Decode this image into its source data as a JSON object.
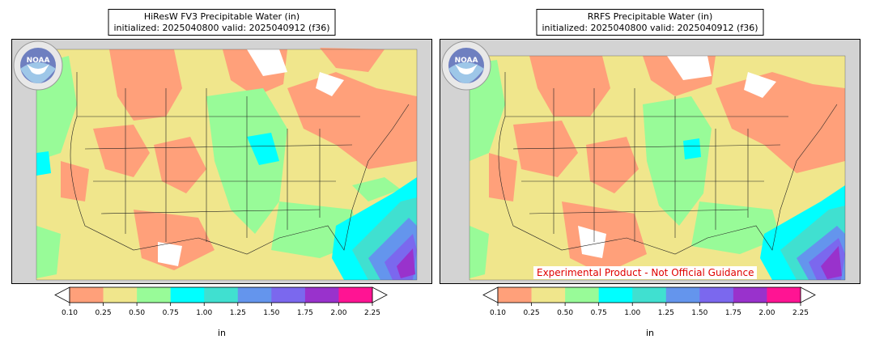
{
  "panels": [
    {
      "id": "left",
      "title_line1": "HiResW FV3 Precipitable Water (in)",
      "title_line2": "initialized: 2025040800 valid: 2025040912 (f36)",
      "logo_text": "NOAA",
      "experimental_label": ""
    },
    {
      "id": "right",
      "title_line1": "RRFS Precipitable Water (in)",
      "title_line2": "initialized: 2025040800 valid: 2025040912 (f36)",
      "logo_text": "NOAA",
      "experimental_label": "Experimental Product - Not Official Guidance"
    }
  ],
  "colorbar": {
    "units": "in",
    "ticks": [
      "0.10",
      "0.25",
      "0.50",
      "0.75",
      "1.00",
      "1.25",
      "1.50",
      "1.75",
      "2.00",
      "2.25"
    ],
    "colors": [
      "#ffa07a",
      "#f0e68c",
      "#98fb98",
      "#00ffff",
      "#40e0d0",
      "#6495ed",
      "#7b68ee",
      "#9932cc",
      "#ff1493"
    ],
    "extend_left_color": "#ffffff",
    "extend_right_color": "#ffffff"
  },
  "colors": {
    "land_mask": "#d3d3d3",
    "bin_0_10_0_25": "#ffa07a",
    "bin_0_25_0_50": "#f0e68c",
    "bin_0_50_0_75": "#98fb98",
    "bin_0_75_1_00": "#00ffff",
    "bin_1_00_1_25": "#40e0d0",
    "bin_1_25_1_50": "#6495ed",
    "bin_1_50_1_75": "#7b68ee",
    "bin_1_75_2_00": "#9932cc",
    "bin_2_00_2_25": "#ff1493",
    "experimental_text": "#e00000"
  }
}
